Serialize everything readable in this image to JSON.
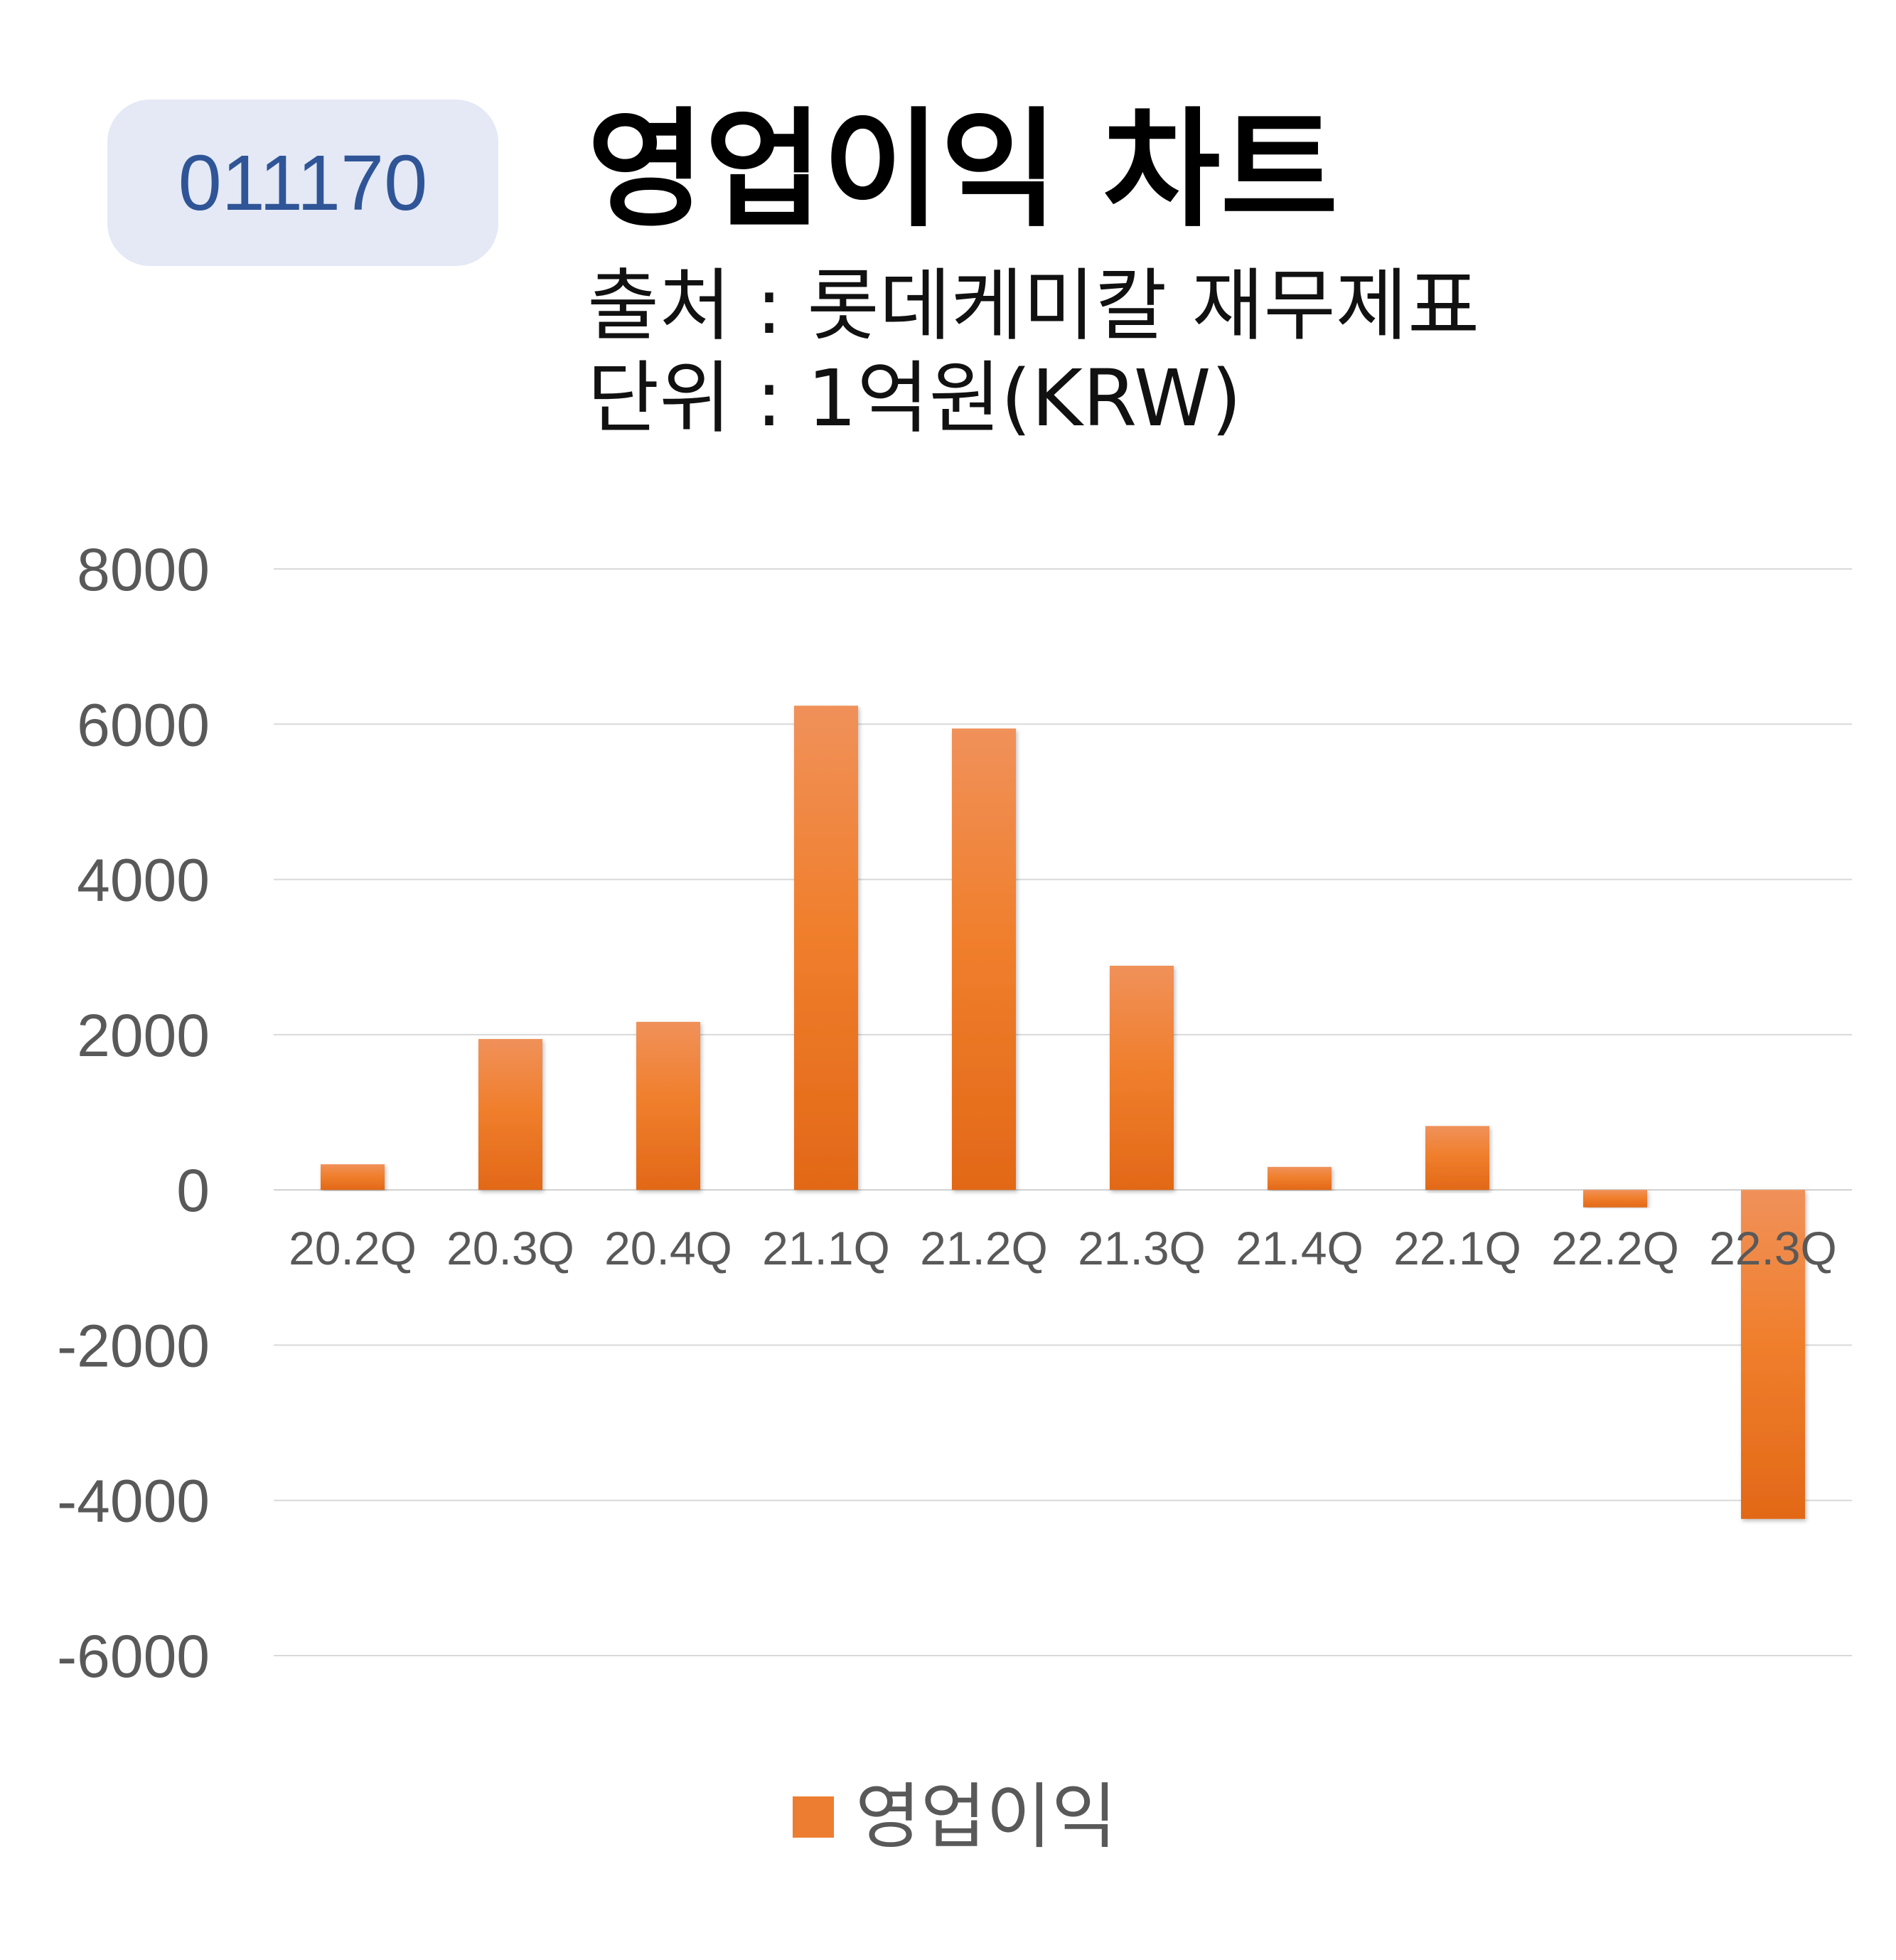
{
  "header": {
    "code": "011170",
    "title": "영업이익 차트",
    "source": "출처 : 롯데케미칼 재무제표",
    "unit": "단위 : 1억원(KRW)"
  },
  "legend": {
    "label": "영업이익",
    "color": "#ed7d31"
  },
  "chart_data": {
    "type": "bar",
    "categories": [
      "20.2Q",
      "20.3Q",
      "20.4Q",
      "21.1Q",
      "21.2Q",
      "21.3Q",
      "21.4Q",
      "22.1Q",
      "22.2Q",
      "22.3Q"
    ],
    "series": [
      {
        "name": "영업이익",
        "values": [
          330,
          1944,
          2165,
          6238,
          5944,
          2888,
          296,
          823,
          -224,
          -4239
        ],
        "color": "#ed7d31"
      }
    ],
    "ylim": [
      -6000,
      8000
    ],
    "yticks": [
      8000,
      6000,
      4000,
      2000,
      0,
      -2000,
      -4000,
      -6000
    ],
    "grid": true,
    "legend_position": "bottom"
  }
}
